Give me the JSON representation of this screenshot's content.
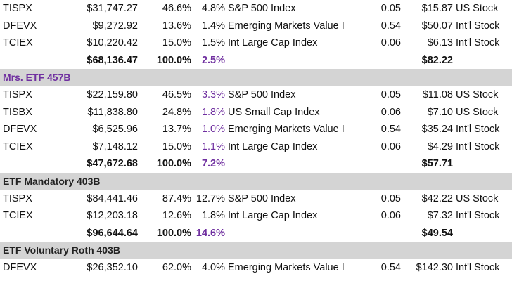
{
  "sections": [
    {
      "title": "",
      "rows": [
        {
          "ticker": "TISPX",
          "balance": "$31,747.27",
          "weight": "46.6%",
          "rate": "4.8%",
          "name": "S&P 500 Index",
          "expense": "0.05",
          "dollar": "$15.87",
          "category": "US Stock"
        },
        {
          "ticker": "DFEVX",
          "balance": "$9,272.92",
          "weight": "13.6%",
          "rate": "1.4%",
          "name": "Emerging Markets Value I",
          "expense": "0.54",
          "dollar": "$50.07",
          "category": "Int'l Stock"
        },
        {
          "ticker": "TCIEX",
          "balance": "$10,220.42",
          "weight": "15.0%",
          "rate": "1.5%",
          "name": "Int Large Cap  Index",
          "expense": "0.06",
          "dollar": "$6.13",
          "category": "Int'l Stock"
        }
      ],
      "total": {
        "balance": "$68,136.47",
        "weight": "100.0%",
        "rate": "2.5%",
        "dollar": "$82.22"
      }
    },
    {
      "title": "Mrs. ETF 457B",
      "rows": [
        {
          "ticker": "TISPX",
          "balance": "$22,159.80",
          "weight": "46.5%",
          "rate": "3.3%",
          "name": "S&P 500 Index",
          "expense": "0.05",
          "dollar": "$11.08",
          "category": "US Stock"
        },
        {
          "ticker": "TISBX",
          "balance": "$11,838.80",
          "weight": "24.8%",
          "rate": "1.8%",
          "name": "US Small Cap Index",
          "expense": "0.06",
          "dollar": "$7.10",
          "category": "US Stock"
        },
        {
          "ticker": "DFEVX",
          "balance": "$6,525.96",
          "weight": "13.7%",
          "rate": "1.0%",
          "name": "Emerging Markets Value I",
          "expense": "0.54",
          "dollar": "$35.24",
          "category": "Int'l Stock"
        },
        {
          "ticker": "TCIEX",
          "balance": "$7,148.12",
          "weight": "15.0%",
          "rate": "1.1%",
          "name": "Int Large Cap  Index",
          "expense": "0.06",
          "dollar": "$4.29",
          "category": "Int'l Stock"
        }
      ],
      "total": {
        "balance": "$47,672.68",
        "weight": "100.0%",
        "rate": "7.2%",
        "dollar": "$57.71"
      }
    },
    {
      "title": "ETF Mandatory 403B",
      "rows": [
        {
          "ticker": "TISPX",
          "balance": "$84,441.46",
          "weight": "87.4%",
          "rate": "12.7%",
          "name": "S&P 500 Index",
          "expense": "0.05",
          "dollar": "$42.22",
          "category": "US Stock"
        },
        {
          "ticker": "TCIEX",
          "balance": "$12,203.18",
          "weight": "12.6%",
          "rate": "1.8%",
          "name": "Int Large Cap  Index",
          "expense": "0.06",
          "dollar": "$7.32",
          "category": "Int'l Stock"
        }
      ],
      "total": {
        "balance": "$96,644.64",
        "weight": "100.0%",
        "rate": "14.6%",
        "dollar": "$49.54"
      }
    },
    {
      "title": "ETF Voluntary Roth 403B",
      "rows": [
        {
          "ticker": "DFEVX",
          "balance": "$26,352.10",
          "weight": "62.0%",
          "rate": "4.0%",
          "name": "Emerging Markets Value I",
          "expense": "0.54",
          "dollar": "$142.30",
          "category": "Int'l Stock"
        }
      ],
      "total": null
    }
  ],
  "colors": {
    "header_bg": "#d4d4d4",
    "accent_purple": "#7030a0",
    "text": "#111111"
  }
}
